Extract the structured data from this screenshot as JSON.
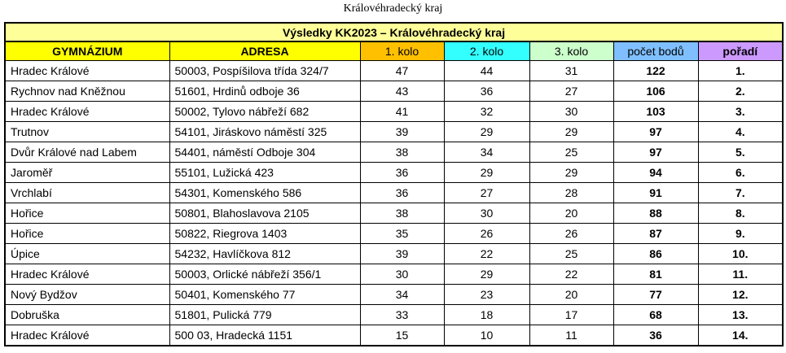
{
  "caption": "Královéhradecký kraj",
  "table": {
    "title": "Výsledky KK2023 – Královéhradecký kraj",
    "header": [
      "GYMNÁZIUM",
      "ADRESA",
      "1. kolo",
      "2. kolo",
      "3. kolo",
      "počet bodů",
      "pořadí"
    ],
    "rows": [
      [
        "Hradec Králové",
        "50003, Pospíšilova třída 324/7",
        47,
        44,
        31,
        122,
        "1."
      ],
      [
        "Rychnov nad Kněžnou",
        "51601, Hrdinů odboje 36",
        43,
        36,
        27,
        106,
        "2."
      ],
      [
        "Hradec Králové",
        "50002, Tylovo nábřeží 682",
        41,
        32,
        30,
        103,
        "3."
      ],
      [
        "Trutnov",
        "54101, Jiráskovo náměstí 325",
        39,
        29,
        29,
        97,
        "4."
      ],
      [
        "Dvůr Králové nad Labem",
        "54401, náměstí Odboje 304",
        38,
        34,
        25,
        97,
        "5."
      ],
      [
        "Jaroměř",
        "55101, Lužická 423",
        36,
        29,
        29,
        94,
        "6."
      ],
      [
        "Vrchlabí",
        "54301, Komenského 586",
        36,
        27,
        28,
        91,
        "7."
      ],
      [
        "Hořice",
        "50801, Blahoslavova 2105",
        38,
        30,
        20,
        88,
        "8."
      ],
      [
        "Hořice",
        "50822, Riegrova 1403",
        35,
        26,
        26,
        87,
        "9."
      ],
      [
        "Úpice",
        "54232, Havlíčkova 812",
        39,
        22,
        25,
        86,
        "10."
      ],
      [
        "Hradec Králové",
        "50003, Orlické nábřeží 356/1",
        30,
        29,
        22,
        81,
        "11."
      ],
      [
        "Nový Bydžov",
        "50401, Komenského 77",
        34,
        23,
        20,
        77,
        "12."
      ],
      [
        "Dobruška",
        "51801, Pulická 779",
        33,
        18,
        17,
        68,
        "13."
      ],
      [
        "Hradec Králové",
        "500 03, Hradecká 1151",
        15,
        10,
        11,
        36,
        "14."
      ]
    ]
  }
}
